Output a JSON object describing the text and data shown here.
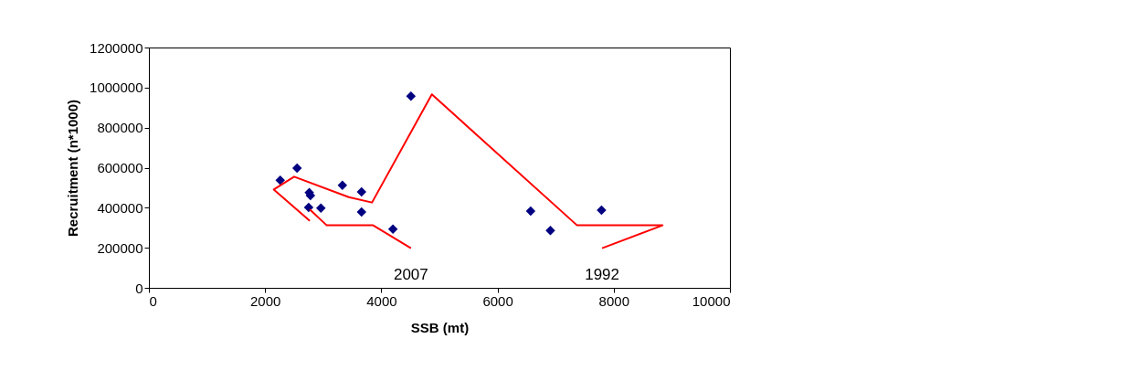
{
  "chart_data": {
    "type": "scatter",
    "xlabel": "SSB (mt)",
    "ylabel": "Recruitment (n*1000)",
    "xlim": [
      0,
      10000
    ],
    "xticks": [
      0,
      2000,
      4000,
      6000,
      8000,
      10000
    ],
    "ylim": [
      0,
      1200000
    ],
    "yticks": [
      0,
      200000,
      400000,
      600000,
      800000,
      1000000,
      1200000
    ],
    "grid": false,
    "series": [
      {
        "color": "#000080",
        "marker": "diamond",
        "x": [
          2260,
          2550,
          2760,
          2780,
          2750,
          2960,
          3330,
          3660,
          3660,
          4200,
          4510,
          6570,
          6910,
          7790
        ],
        "values": [
          537000,
          598000,
          476000,
          461000,
          401000,
          398000,
          512000,
          479000,
          379000,
          293000,
          957000,
          383000,
          286000,
          388000
        ]
      },
      {
        "type": "line",
        "color": "#ff0000",
        "marker": "none",
        "x": [
          7800,
          8840,
          7370,
          4870,
          3840,
          3440,
          2500,
          2150,
          2770,
          null,
          2770,
          3060,
          3860,
          4510
        ],
        "values": [
          198000,
          312000,
          312000,
          966000,
          426000,
          453000,
          555000,
          491000,
          334000,
          null,
          391000,
          312000,
          312000,
          198000
        ]
      }
    ],
    "annotations": [
      {
        "text": "2007",
        "x": 4510,
        "y": 198000
      },
      {
        "text": "1992",
        "x": 7800,
        "y": 198000
      }
    ]
  }
}
